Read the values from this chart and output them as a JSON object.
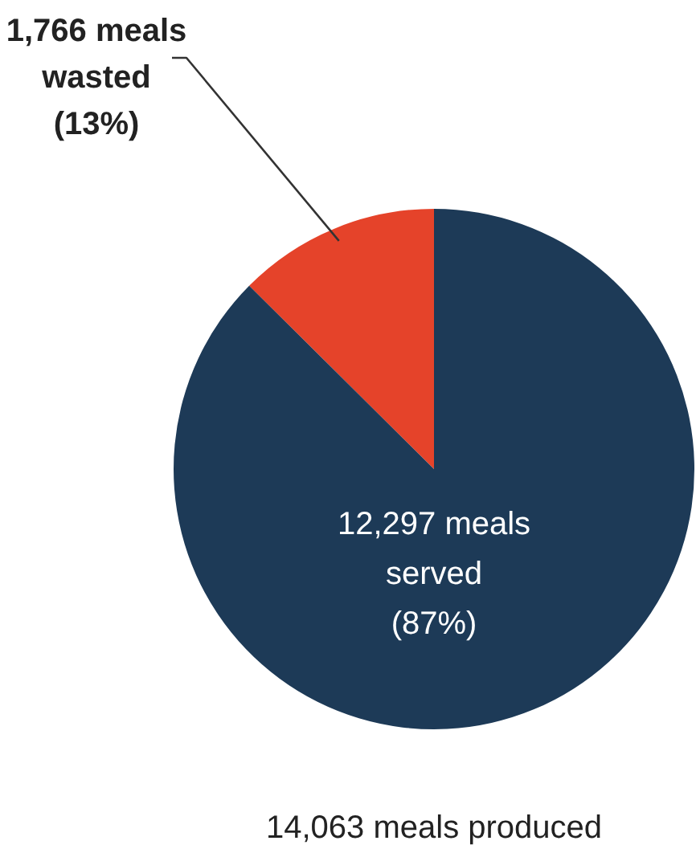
{
  "chart_data": {
    "type": "pie",
    "categories": [
      null,
      null
    ],
    "values": [
      1766,
      12297
    ],
    "colors": [
      "#e5432a",
      "#1d3a57"
    ],
    "value_labels": [
      "1,766 meals\nwasted\n(13%)",
      "12,297 meals\nserved\n(87%)"
    ],
    "annotations": [
      "14,063 meals produced"
    ],
    "legend": false
  }
}
